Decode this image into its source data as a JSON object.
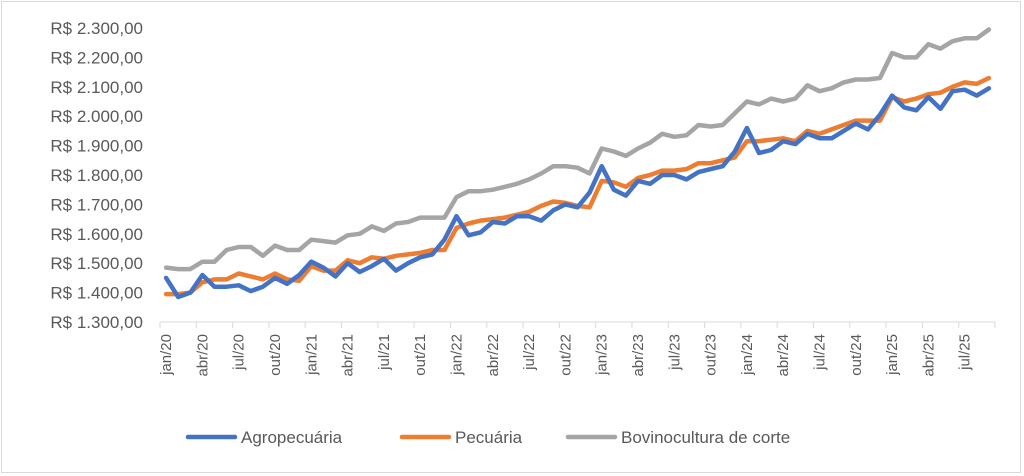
{
  "chart_data": {
    "type": "line",
    "title": "",
    "xlabel": "",
    "ylabel": "",
    "ylim": [
      1300,
      2300
    ],
    "yticks": [
      "R$ 1.300,00",
      "R$ 1.400,00",
      "R$ 1.500,00",
      "R$ 1.600,00",
      "R$ 1.700,00",
      "R$ 1.800,00",
      "R$ 1.900,00",
      "R$ 2.000,00",
      "R$ 2.100,00",
      "R$ 2.200,00",
      "R$ 2.300,00"
    ],
    "ytick_values": [
      1300,
      1400,
      1500,
      1600,
      1700,
      1800,
      1900,
      2000,
      2100,
      2200,
      2300
    ],
    "x_tick_labels": [
      "jan/20",
      "abr/20",
      "jul/20",
      "out/20",
      "jan/21",
      "abr/21",
      "jul/21",
      "out/21",
      "jan/22",
      "abr/22",
      "jul/22",
      "out/22",
      "jan/23",
      "abr/23",
      "jul/23",
      "out/23",
      "jan/24",
      "abr/24",
      "jul/24",
      "out/24",
      "jan/25",
      "abr/25",
      "jul/25"
    ],
    "x_start": "jan/20",
    "x_end": "set/25",
    "n_points": 69,
    "grid": false,
    "legend_position": "bottom",
    "series": [
      {
        "name": "Agropecuária",
        "color": "#4472C4",
        "values": [
          1450,
          1385,
          1400,
          1460,
          1420,
          1420,
          1425,
          1405,
          1420,
          1450,
          1430,
          1460,
          1505,
          1485,
          1455,
          1500,
          1470,
          1490,
          1515,
          1475,
          1500,
          1520,
          1530,
          1580,
          1660,
          1595,
          1605,
          1640,
          1635,
          1660,
          1660,
          1645,
          1680,
          1700,
          1690,
          1740,
          1830,
          1750,
          1730,
          1780,
          1770,
          1800,
          1800,
          1785,
          1810,
          1820,
          1830,
          1880,
          1960,
          1875,
          1885,
          1915,
          1905,
          1940,
          1925,
          1925,
          1950,
          1975,
          1955,
          2005,
          2070,
          2030,
          2020,
          2065,
          2025,
          2085,
          2090,
          2070,
          2095
        ]
      },
      {
        "name": "Pecuária",
        "color": "#ED7D31",
        "values": [
          1395,
          1395,
          1400,
          1435,
          1445,
          1445,
          1465,
          1455,
          1445,
          1465,
          1445,
          1440,
          1490,
          1475,
          1475,
          1510,
          1500,
          1520,
          1515,
          1525,
          1530,
          1535,
          1545,
          1545,
          1620,
          1635,
          1645,
          1650,
          1655,
          1665,
          1675,
          1695,
          1710,
          1705,
          1695,
          1690,
          1780,
          1775,
          1760,
          1790,
          1800,
          1815,
          1815,
          1820,
          1840,
          1840,
          1850,
          1860,
          1915,
          1915,
          1920,
          1925,
          1915,
          1950,
          1940,
          1955,
          1970,
          1985,
          1985,
          1985,
          2065,
          2050,
          2060,
          2075,
          2080,
          2100,
          2115,
          2110,
          2130
        ]
      },
      {
        "name": "Bovinocultura de corte",
        "color": "#A5A5A5",
        "values": [
          1485,
          1480,
          1480,
          1505,
          1505,
          1545,
          1555,
          1555,
          1525,
          1560,
          1545,
          1545,
          1580,
          1575,
          1570,
          1595,
          1600,
          1625,
          1610,
          1635,
          1640,
          1655,
          1655,
          1655,
          1725,
          1745,
          1745,
          1750,
          1760,
          1770,
          1785,
          1805,
          1830,
          1830,
          1825,
          1805,
          1890,
          1880,
          1865,
          1890,
          1910,
          1940,
          1930,
          1935,
          1970,
          1965,
          1970,
          2010,
          2050,
          2040,
          2060,
          2050,
          2060,
          2105,
          2085,
          2095,
          2115,
          2125,
          2125,
          2130,
          2215,
          2200,
          2200,
          2245,
          2230,
          2255,
          2265,
          2265,
          2295
        ]
      }
    ]
  }
}
